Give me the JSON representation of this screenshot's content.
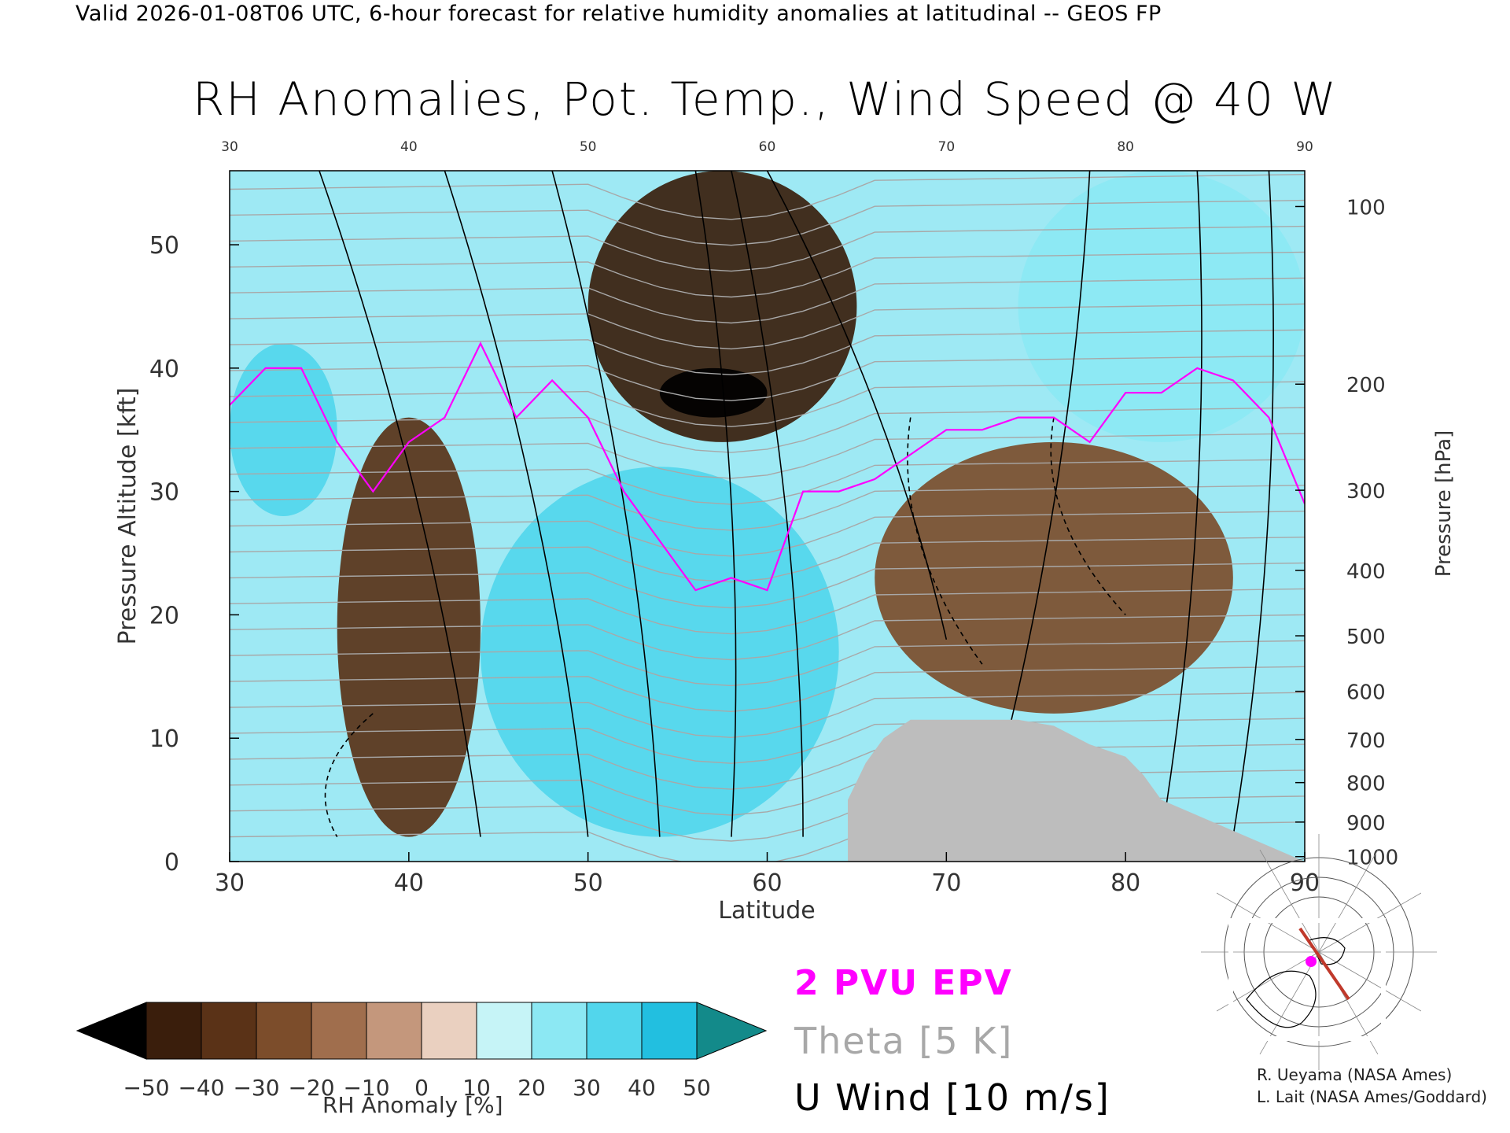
{
  "header": {
    "valid_line": "Valid 2026-01-08T06 UTC, 6-hour forecast for relative humidity anomalies at latitudinal -- GEOS FP",
    "title": "RH Anomalies, Pot. Temp., Wind Speed @ 40 W"
  },
  "chart_data": {
    "type": "heatmap",
    "title": "RH Anomalies, Pot. Temp., Wind Speed @ 40 W",
    "xlabel": "Latitude",
    "ylabel_left": "Pressure Altitude [kft]",
    "ylabel_right": "Pressure [hPa]",
    "xlim": [
      30,
      90
    ],
    "ylim_kft": [
      0,
      56
    ],
    "x_ticks": [
      30,
      40,
      50,
      60,
      70,
      80,
      90
    ],
    "x_ticks_top": [
      30,
      40,
      50,
      60,
      70,
      80,
      90
    ],
    "y_ticks_left": [
      0,
      10,
      20,
      30,
      40,
      50
    ],
    "y_ticks_right": [
      {
        "label": "100",
        "kft": 53.1
      },
      {
        "label": "200",
        "kft": 38.7
      },
      {
        "label": "300",
        "kft": 30.1
      },
      {
        "label": "400",
        "kft": 23.6
      },
      {
        "label": "500",
        "kft": 18.3
      },
      {
        "label": "600",
        "kft": 13.8
      },
      {
        "label": "700",
        "kft": 9.9
      },
      {
        "label": "800",
        "kft": 6.4
      },
      {
        "label": "900",
        "kft": 3.2
      },
      {
        "label": "1000",
        "kft": 0.4
      }
    ],
    "anomaly_regions": [
      {
        "lat_range": [
          30,
          36
        ],
        "kft_range": [
          28,
          42
        ],
        "rh_anomaly": 30
      },
      {
        "lat_range": [
          36,
          44
        ],
        "kft_range": [
          2,
          36
        ],
        "rh_anomaly": -40
      },
      {
        "lat_range": [
          50,
          65
        ],
        "kft_range": [
          34,
          56
        ],
        "rh_anomaly": -45
      },
      {
        "lat_range": [
          54,
          60
        ],
        "kft_range": [
          36,
          40
        ],
        "rh_anomaly": -55
      },
      {
        "lat_range": [
          44,
          64
        ],
        "kft_range": [
          2,
          32
        ],
        "rh_anomaly": 30
      },
      {
        "lat_range": [
          66,
          86
        ],
        "kft_range": [
          12,
          34
        ],
        "rh_anomaly": -25
      },
      {
        "lat_range": [
          74,
          90
        ],
        "kft_range": [
          34,
          56
        ],
        "rh_anomaly": 20
      }
    ],
    "epv_2pvu_line": {
      "lat": [
        30,
        32,
        34,
        36,
        38,
        40,
        42,
        44,
        46,
        48,
        50,
        52,
        54,
        56,
        58,
        60,
        62,
        64,
        66,
        68,
        70,
        72,
        74,
        76,
        78,
        80,
        82,
        84,
        86,
        88,
        90
      ],
      "kft": [
        37,
        40,
        40,
        34,
        30,
        34,
        36,
        42,
        36,
        39,
        36,
        30,
        26,
        22,
        23,
        22,
        30,
        30,
        31,
        33,
        35,
        35,
        36,
        36,
        34,
        38,
        38,
        40,
        39,
        36,
        29
      ]
    },
    "terrain": {
      "lat": [
        64.5,
        65.5,
        66.5,
        68,
        70,
        72,
        74,
        76,
        78,
        80,
        81,
        82,
        90
      ],
      "kft": [
        5,
        8,
        10,
        11.5,
        11.5,
        11.5,
        11.5,
        11,
        9.5,
        8.5,
        7,
        5,
        0
      ]
    },
    "colorbar": {
      "label": "RH Anomaly [%]",
      "ticks": [
        "−50",
        "−40",
        "−30",
        "−20",
        "−10",
        "0",
        "10",
        "20",
        "30",
        "40",
        "50"
      ],
      "colors": [
        "#3a1e0c",
        "#5a3217",
        "#7c4d2b",
        "#a06e4d",
        "#c4977c",
        "#ead0c0",
        "#c6f4f7",
        "#8ce8f3",
        "#52d6ec",
        "#22bfe0",
        "#10a0c0"
      ],
      "under_color": "#000000",
      "over_color": "#138a8a"
    },
    "legend": [
      "2 PVU EPV",
      "Theta [5 K]",
      "U Wind [10 m/s]"
    ],
    "legend_colors": [
      "#ff00ff",
      "#a8a8a8",
      "#000000"
    ]
  },
  "credits": [
    "R. Ueyama (NASA Ames)",
    "L. Lait (NASA Ames/Goddard)"
  ]
}
